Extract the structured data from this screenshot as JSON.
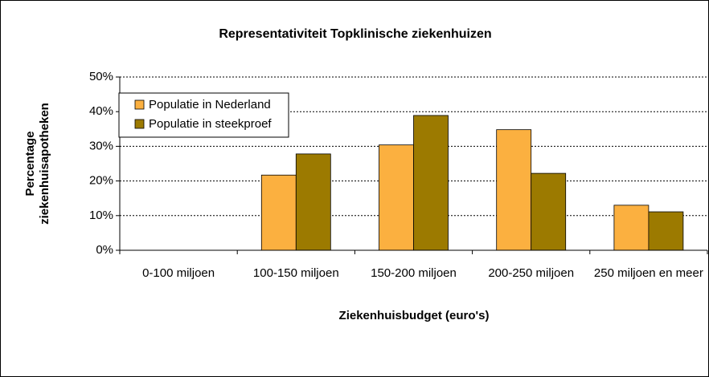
{
  "chart_data": {
    "type": "bar",
    "title": "Representativiteit Topklinische ziekenhuizen",
    "x_label": "Ziekenhuisbudget (euro's)",
    "y_label": "Percentage ziekenhuisapotheken",
    "categories": [
      "0-100 miljoen",
      "100-150 miljoen",
      "150-200 miljoen",
      "200-250 miljoen",
      "250 miljoen en meer"
    ],
    "series": [
      {
        "name": "Populatie in Nederland",
        "color": "#fbb040",
        "values": [
          0,
          21.7,
          30.4,
          34.8,
          13.0
        ]
      },
      {
        "name": "Populatie in steekproef",
        "color": "#9c7a00",
        "values": [
          0,
          27.8,
          38.9,
          22.2,
          11.1
        ]
      }
    ],
    "ylim": [
      0,
      50
    ],
    "yticks": [
      {
        "value": 0,
        "label": "0%"
      },
      {
        "value": 10,
        "label": "10%"
      },
      {
        "value": 20,
        "label": "20%"
      },
      {
        "value": 30,
        "label": "30%"
      },
      {
        "value": 40,
        "label": "40%"
      },
      {
        "value": 50,
        "label": "50%"
      }
    ],
    "grid": true,
    "legend": "upper left"
  }
}
